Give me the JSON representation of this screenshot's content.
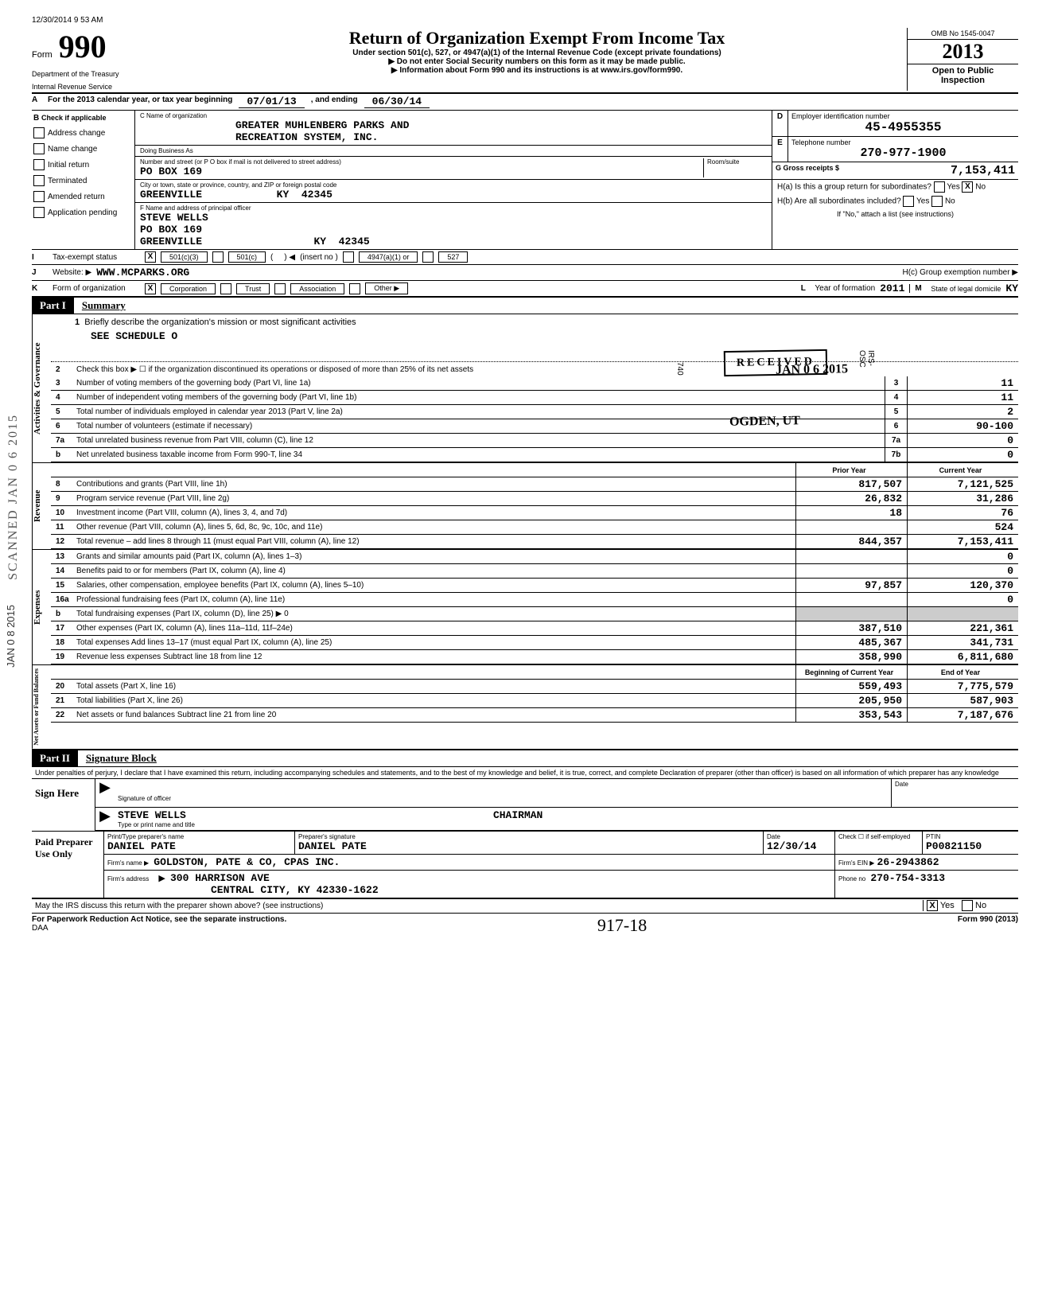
{
  "timestamp": "12/30/2014 9 53 AM",
  "form": {
    "word": "Form",
    "number": "990",
    "dept1": "Department of the Treasury",
    "dept2": "Internal Revenue Service",
    "title": "Return of Organization Exempt From Income Tax",
    "subtitle": "Under section 501(c), 527, or 4947(a)(1) of the Internal Revenue Code (except private foundations)",
    "warn": "▶ Do not enter Social Security numbers on this form as it may be made public.",
    "info": "▶ Information about Form 990 and its instructions is at www.irs.gov/form990.",
    "omb": "OMB No 1545-0047",
    "year": "2013",
    "open1": "Open to Public",
    "open2": "Inspection"
  },
  "rowA": {
    "lbl": "A",
    "text": "For the 2013 calendar year, or tax year beginning",
    "begin": "07/01/13",
    "mid": ", and ending",
    "end": "06/30/14"
  },
  "B": {
    "hdr": "Check if applicable",
    "items": [
      "Address change",
      "Name change",
      "Initial return",
      "Terminated",
      "Amended return",
      "Application pending"
    ]
  },
  "C": {
    "name_lbl": "C  Name of organization",
    "name1": "GREATER MUHLENBERG PARKS AND",
    "name2": "RECREATION SYSTEM, INC.",
    "dba_lbl": "Doing Business As",
    "addr_lbl": "Number and street (or P O box if mail is not delivered to street address)",
    "addr": "PO BOX 169",
    "room_lbl": "Room/suite",
    "city_lbl": "City or town, state or province, country, and ZIP or foreign postal code",
    "city": "GREENVILLE",
    "state": "KY",
    "zip": "42345",
    "off_lbl": "F  Name and address of principal officer",
    "off_name": "STEVE WELLS",
    "off_addr": "PO BOX 169",
    "off_city": "GREENVILLE",
    "off_state": "KY",
    "off_zip": "42345"
  },
  "D": {
    "lbl": "Employer identification number",
    "val": "45-4955355"
  },
  "E": {
    "lbl": "Telephone number",
    "val": "270-977-1900"
  },
  "G": {
    "lbl": "G Gross receipts $",
    "val": "7,153,411"
  },
  "H": {
    "a": "H(a) Is this a group return for subordinates?",
    "b": "H(b) Are all subordinates included?",
    "note": "If \"No,\" attach a list (see instructions)",
    "c": "H(c) Group exemption number ▶",
    "yes": "Yes",
    "no": "No",
    "a_no_checked": "X"
  },
  "I": {
    "lbl": "Tax-exempt status",
    "x": "X",
    "opts": [
      "501(c)(3)",
      "501(c)",
      "(insert no )",
      "4947(a)(1) or",
      "527"
    ]
  },
  "J": {
    "lbl": "Website: ▶",
    "val": "WWW.MCPARKS.ORG"
  },
  "K": {
    "lbl": "Form of organization",
    "x": "X",
    "opts": [
      "Corporation",
      "Trust",
      "Association",
      "Other ▶"
    ]
  },
  "L": {
    "lbl": "Year of formation",
    "val": "2011"
  },
  "M": {
    "lbl": "State of legal domicile",
    "val": "KY"
  },
  "part1": {
    "lbl": "Part I",
    "title": "Summary"
  },
  "gov": {
    "label": "Activities & Governance",
    "l1": "Briefly describe the organization's mission or most significant activities",
    "l1v": "SEE SCHEDULE O",
    "l2": "Check this box ▶ ☐ if the organization discontinued its operations or disposed of more than 25% of its net assets",
    "l3": "Number of voting members of the governing body (Part VI, line 1a)",
    "l4": "Number of independent voting members of the governing body (Part VI, line 1b)",
    "l5": "Total number of individuals employed in calendar year 2013 (Part V, line 2a)",
    "l6": "Total number of volunteers (estimate if necessary)",
    "l7a": "Total unrelated business revenue from Part VIII, column (C), line 12",
    "l7b": "Net unrelated business taxable income from Form 990-T, line 34",
    "v3": "11",
    "v4": "11",
    "v5": "2",
    "v6": "90-100",
    "v7a": "0",
    "v7b": "0",
    "stamp1": "RECEIVED",
    "stamp2": "JAN 0 6 2015",
    "stamp3": "IRS-OSC",
    "stamp4": "OGDEN, UT",
    "stamp5": "740"
  },
  "rev": {
    "label": "Revenue",
    "hdr_prior": "Prior Year",
    "hdr_curr": "Current Year",
    "rows": [
      {
        "n": "8",
        "t": "Contributions and grants (Part VIII, line 1h)",
        "p": "817,507",
        "c": "7,121,525"
      },
      {
        "n": "9",
        "t": "Program service revenue (Part VIII, line 2g)",
        "p": "26,832",
        "c": "31,286"
      },
      {
        "n": "10",
        "t": "Investment income (Part VIII, column (A), lines 3, 4, and 7d)",
        "p": "18",
        "c": "76"
      },
      {
        "n": "11",
        "t": "Other revenue (Part VIII, column (A), lines 5, 6d, 8c, 9c, 10c, and 11e)",
        "p": "",
        "c": "524"
      },
      {
        "n": "12",
        "t": "Total revenue – add lines 8 through 11 (must equal Part VIII, column (A), line 12)",
        "p": "844,357",
        "c": "7,153,411"
      }
    ]
  },
  "exp": {
    "label": "Expenses",
    "rows": [
      {
        "n": "13",
        "t": "Grants and similar amounts paid (Part IX, column (A), lines 1–3)",
        "p": "",
        "c": "0"
      },
      {
        "n": "14",
        "t": "Benefits paid to or for members (Part IX, column (A), line 4)",
        "p": "",
        "c": "0"
      },
      {
        "n": "15",
        "t": "Salaries, other compensation, employee benefits (Part IX, column (A), lines 5–10)",
        "p": "97,857",
        "c": "120,370"
      },
      {
        "n": "16a",
        "t": "Professional fundraising fees (Part IX, column (A), line 11e)",
        "p": "",
        "c": "0"
      },
      {
        "n": "b",
        "t": "Total fundraising expenses (Part IX, column (D), line 25) ▶                                    0",
        "p": "",
        "c": "",
        "shade": true
      },
      {
        "n": "17",
        "t": "Other expenses (Part IX, column (A), lines 11a–11d, 11f–24e)",
        "p": "387,510",
        "c": "221,361"
      },
      {
        "n": "18",
        "t": "Total expenses Add lines 13–17 (must equal Part IX, column (A), line 25)",
        "p": "485,367",
        "c": "341,731"
      },
      {
        "n": "19",
        "t": "Revenue less expenses Subtract line 18 from line 12",
        "p": "358,990",
        "c": "6,811,680"
      }
    ]
  },
  "net": {
    "label": "Net Assets or Fund Balances",
    "hdr_beg": "Beginning of Current Year",
    "hdr_end": "End of Year",
    "rows": [
      {
        "n": "20",
        "t": "Total assets (Part X, line 16)",
        "p": "559,493",
        "c": "7,775,579"
      },
      {
        "n": "21",
        "t": "Total liabilities (Part X, line 26)",
        "p": "205,950",
        "c": "587,903"
      },
      {
        "n": "22",
        "t": "Net assets or fund balances Subtract line 21 from line 20",
        "p": "353,543",
        "c": "7,187,676"
      }
    ]
  },
  "part2": {
    "lbl": "Part II",
    "title": "Signature Block"
  },
  "sig": {
    "decl": "Under penalties of perjury, I declare that I have examined this return, including accompanying schedules and statements, and to the best of my knowledge and belief, it is true, correct, and complete Declaration of preparer (other than officer) is based on all information of which preparer has any knowledge",
    "here": "Sign Here",
    "sig_lbl": "Signature of officer",
    "date_lbl": "Date",
    "name": "STEVE WELLS",
    "title": "CHAIRMAN",
    "name_lbl": "Type or print name and title"
  },
  "prep": {
    "left": "Paid Preparer Use Only",
    "r1": {
      "l1": "Print/Type preparer's name",
      "v1": "DANIEL PATE",
      "l2": "Preparer's signature",
      "v2": "DANIEL PATE",
      "l3": "Date",
      "v3": "12/30/14",
      "l4": "Check ☐ if self-employed",
      "l5": "PTIN",
      "v5": "P00821150"
    },
    "r2": {
      "l": "Firm's name      ▶",
      "v": "GOLDSTON, PATE & CO, CPAS INC.",
      "l2": "Firm's EIN ▶",
      "v2": "26-2943862"
    },
    "r3": {
      "l": "Firm's address",
      "v1": "300 HARRISON AVE",
      "v2": "CENTRAL CITY, KY  42330-1622",
      "l2": "Phone no",
      "v3": "270-754-3313"
    }
  },
  "may": {
    "t": "May the IRS discuss this return with the preparer shown above? (see instructions)",
    "yes": "Yes",
    "no": "No",
    "x": "X"
  },
  "footer": {
    "l": "For Paperwork Reduction Act Notice, see the separate instructions.",
    "daa": "DAA",
    "r": "Form 990 (2013)",
    "hand": "917-18"
  },
  "scanned": "SCANNED JAN 0 6 2015",
  "stamp2": "JAN 0 8 2015"
}
